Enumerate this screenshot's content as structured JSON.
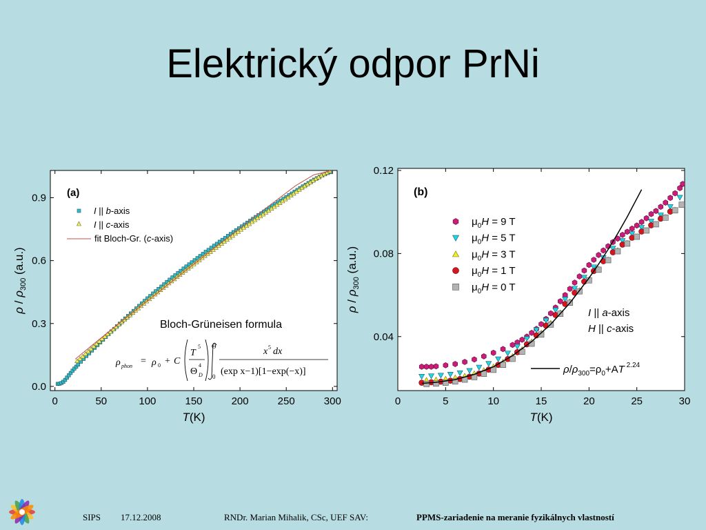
{
  "slide": {
    "title": "Elektrický odpor PrNi"
  },
  "footer": {
    "event": "SIPS",
    "date": "17.12.2008",
    "author": "RNDr. Marian Mihalik, CSc, UEF SAV:",
    "topic": "PPMS-zariadenie na meranie fyzikálnych vlastností"
  },
  "colors": {
    "background": "#b7dde2",
    "fit_a": "#c0504d",
    "b_axis": "#34b9c9",
    "c_axis": "#f2f05e",
    "h9": "#cc1c79",
    "h5": "#25d3e6",
    "h3": "#f2ee21",
    "h1": "#d8141e",
    "h0": "#b3b3b3"
  },
  "chart_data": [
    {
      "type": "scatter",
      "panel_label": "(a)",
      "xlabel_main": "T",
      "xlabel_unit": "(K)",
      "ylabel_rho": "ρ",
      "ylabel_sep": " / ",
      "ylabel_sub": "300",
      "ylabel_unit": " (a.u.)",
      "xlim": [
        -5,
        305
      ],
      "ylim": [
        -0.02,
        1.03
      ],
      "xticks": [
        0,
        50,
        100,
        150,
        200,
        250,
        300
      ],
      "xtick_labels": [
        "0",
        "50",
        "100",
        "150",
        "200",
        "250",
        "300"
      ],
      "yticks": [
        0.0,
        0.3,
        0.6,
        0.9
      ],
      "ytick_labels": [
        "0.0",
        "0.3",
        "0.6",
        "0.9"
      ],
      "annotation": "Bloch-Grüneisen formula",
      "formula": {
        "rho": "ρ",
        "sub_phon": "phon",
        "eq": "=",
        "rho0": "ρ",
        "sub0": "0",
        "plus": "+",
        "C": "C",
        "T": "T",
        "pow5": "5",
        "Theta": "Θ",
        "pow4": "4",
        "subD": "D",
        "int_upper": "Θ",
        "int_lower": "0",
        "numerator": "x",
        "num_pow": "5",
        "num_dx": "dx",
        "denominator": "(exp x−1)[1−exp(−x)]"
      },
      "legend": [
        {
          "key": "b",
          "pre": "I",
          "mid": " || ",
          "axis": "b",
          "post": "-axis"
        },
        {
          "key": "c",
          "pre": "I",
          "mid": " || ",
          "axis": "c",
          "post": "-axis"
        },
        {
          "key": "fit",
          "pre": "fit  Bloch-Gr.  (",
          "axis": "c",
          "post": "-axis)"
        }
      ],
      "series": [
        {
          "key": "b",
          "marker": "square",
          "x": [
            3,
            5,
            7,
            9,
            11,
            13,
            15,
            17,
            19,
            21,
            23,
            25,
            28,
            31,
            34,
            37,
            40,
            43,
            46,
            49,
            52,
            55,
            58,
            61,
            64,
            67,
            70,
            73,
            76,
            79,
            82,
            85,
            88,
            91,
            94,
            97,
            100,
            103,
            106,
            109,
            112,
            115,
            118,
            121,
            124,
            127,
            130,
            133,
            136,
            139,
            142,
            145,
            148,
            151,
            154,
            157,
            160,
            163,
            166,
            169,
            172,
            175,
            178,
            181,
            184,
            187,
            190,
            193,
            196,
            199,
            202,
            205,
            208,
            211,
            214,
            217,
            220,
            223,
            226,
            229,
            232,
            235,
            238,
            241,
            244,
            247,
            250,
            253,
            256,
            259,
            262,
            265,
            268,
            271,
            274,
            277,
            280,
            283,
            286,
            289,
            292,
            295,
            298
          ],
          "y": [
            0.012,
            0.013,
            0.016,
            0.022,
            0.031,
            0.042,
            0.053,
            0.064,
            0.075,
            0.085,
            0.094,
            0.104,
            0.118,
            0.131,
            0.145,
            0.158,
            0.171,
            0.184,
            0.197,
            0.21,
            0.223,
            0.236,
            0.249,
            0.262,
            0.274,
            0.287,
            0.299,
            0.312,
            0.324,
            0.336,
            0.348,
            0.36,
            0.372,
            0.384,
            0.396,
            0.408,
            0.42,
            0.431,
            0.443,
            0.454,
            0.465,
            0.476,
            0.487,
            0.498,
            0.509,
            0.52,
            0.53,
            0.541,
            0.551,
            0.562,
            0.572,
            0.582,
            0.592,
            0.602,
            0.612,
            0.622,
            0.632,
            0.642,
            0.651,
            0.661,
            0.671,
            0.68,
            0.69,
            0.699,
            0.708,
            0.718,
            0.727,
            0.736,
            0.745,
            0.754,
            0.763,
            0.772,
            0.781,
            0.79,
            0.799,
            0.808,
            0.817,
            0.825,
            0.834,
            0.843,
            0.852,
            0.861,
            0.869,
            0.878,
            0.886,
            0.895,
            0.903,
            0.912,
            0.92,
            0.929,
            0.937,
            0.946,
            0.954,
            0.962,
            0.97,
            0.978,
            0.986,
            0.993,
            1.0,
            1.006,
            1.012,
            1.018,
            1.022
          ]
        },
        {
          "key": "c",
          "marker": "triangle",
          "x": [
            24,
            27,
            30,
            33,
            36,
            39,
            42,
            45,
            48,
            51,
            54,
            57,
            60,
            63,
            66,
            69,
            72,
            75,
            78,
            81,
            84,
            87,
            90,
            93,
            96,
            99,
            102,
            105,
            108,
            111,
            114,
            117,
            120,
            123,
            126,
            129,
            132,
            135,
            138,
            141,
            144,
            147,
            150,
            153,
            156,
            159,
            162,
            165,
            168,
            171,
            174,
            177,
            180,
            183,
            186,
            189,
            192,
            195,
            198,
            201,
            204,
            207,
            210,
            213,
            216,
            219,
            222,
            225,
            228,
            231,
            234,
            237,
            240,
            243,
            246,
            249,
            252,
            255,
            258,
            261,
            264,
            267,
            270,
            273,
            276,
            279,
            282,
            285,
            288,
            291,
            294,
            297
          ],
          "y": [
            0.121,
            0.132,
            0.143,
            0.155,
            0.167,
            0.179,
            0.191,
            0.203,
            0.215,
            0.227,
            0.238,
            0.25,
            0.261,
            0.273,
            0.284,
            0.296,
            0.307,
            0.318,
            0.329,
            0.34,
            0.351,
            0.362,
            0.373,
            0.384,
            0.395,
            0.406,
            0.417,
            0.428,
            0.439,
            0.449,
            0.46,
            0.471,
            0.481,
            0.492,
            0.502,
            0.512,
            0.523,
            0.533,
            0.543,
            0.553,
            0.563,
            0.573,
            0.583,
            0.593,
            0.603,
            0.613,
            0.623,
            0.633,
            0.642,
            0.652,
            0.662,
            0.672,
            0.681,
            0.691,
            0.7,
            0.71,
            0.719,
            0.729,
            0.738,
            0.748,
            0.757,
            0.766,
            0.775,
            0.785,
            0.794,
            0.803,
            0.812,
            0.821,
            0.83,
            0.839,
            0.848,
            0.857,
            0.866,
            0.875,
            0.884,
            0.893,
            0.902,
            0.911,
            0.92,
            0.929,
            0.938,
            0.947,
            0.956,
            0.965,
            0.973,
            0.982,
            0.99,
            0.998,
            1.006,
            1.013,
            1.02,
            1.027
          ]
        },
        {
          "key": "fit",
          "marker": "line",
          "x": [
            22,
            40,
            60,
            80,
            100,
            120,
            140,
            160,
            180,
            200,
            220,
            240,
            260,
            280,
            300
          ],
          "y": [
            0.13,
            0.196,
            0.267,
            0.338,
            0.408,
            0.478,
            0.548,
            0.617,
            0.686,
            0.755,
            0.823,
            0.89,
            0.957,
            1.01,
            1.03
          ]
        }
      ]
    },
    {
      "type": "scatter",
      "panel_label": "(b)",
      "xlabel_main": "T",
      "xlabel_unit": "(K)",
      "ylabel_rho": "ρ",
      "ylabel_sep": " / ",
      "ylabel_sub": "300",
      "ylabel_unit": " (a.u.)",
      "xlim": [
        0,
        30
      ],
      "ylim": [
        0.014,
        0.121
      ],
      "xticks": [
        0,
        5,
        10,
        15,
        20,
        25,
        30
      ],
      "xtick_labels": [
        "0",
        "5",
        "10",
        "15",
        "20",
        "25",
        "30"
      ],
      "yticks": [
        0.04,
        0.08,
        0.12
      ],
      "ytick_labels": [
        "0.04",
        "0.08",
        "0.12"
      ],
      "annotation_line1": {
        "pre": "I",
        "mid": "  || ",
        "axis": "a",
        "post": "-axis"
      },
      "annotation_line2": {
        "pre": "H",
        "mid": " || ",
        "axis": "c",
        "post": "-axis"
      },
      "fit_label": {
        "rho": "ρ",
        "slash": "/",
        "rho2": "ρ",
        "sub300": "300",
        "eq": "=ρ",
        "sub0": "0",
        "plusA": "+A",
        "T": "T",
        "pow": " 2.24"
      },
      "legend": [
        {
          "key": "h9",
          "label_mu": "μ",
          "label_sub": "0",
          "label_H": "H",
          "label_val": " = 9 T"
        },
        {
          "key": "h5",
          "label_mu": "μ",
          "label_sub": "0",
          "label_H": "H",
          "label_val": " = 5 T"
        },
        {
          "key": "h3",
          "label_mu": "μ",
          "label_sub": "0",
          "label_H": "H",
          "label_val": " = 3 T"
        },
        {
          "key": "h1",
          "label_mu": "μ",
          "label_sub": "0",
          "label_H": "H",
          "label_val": " = 1 T"
        },
        {
          "key": "h0",
          "label_mu": "μ",
          "label_sub": "0",
          "label_H": "H",
          "label_val": " = 0 T"
        }
      ],
      "series": [
        {
          "key": "h9",
          "marker": "hexagon",
          "x": [
            2.5,
            3,
            3.5,
            4,
            5,
            6,
            7,
            8,
            9,
            10,
            11,
            12,
            12.5,
            13,
            13.5,
            14,
            14.5,
            15,
            15.5,
            16,
            16.5,
            17,
            17.5,
            18,
            18.5,
            19,
            19.5,
            20,
            20.5,
            21,
            21.5,
            22,
            22.5,
            23,
            23.5,
            24,
            24.5,
            25,
            25.5,
            26,
            26.5,
            27,
            27.5,
            28,
            28.5,
            29,
            29.5,
            29.8
          ],
          "y": [
            0.0255,
            0.0255,
            0.0255,
            0.0257,
            0.0262,
            0.0268,
            0.0278,
            0.029,
            0.0305,
            0.0322,
            0.034,
            0.036,
            0.0372,
            0.0385,
            0.04,
            0.0418,
            0.0437,
            0.046,
            0.0485,
            0.0512,
            0.054,
            0.057,
            0.06,
            0.063,
            0.066,
            0.069,
            0.0718,
            0.0745,
            0.077,
            0.0793,
            0.0815,
            0.0835,
            0.0855,
            0.0872,
            0.089,
            0.0905,
            0.092,
            0.0935,
            0.0952,
            0.097,
            0.099,
            0.1005,
            0.1025,
            0.1045,
            0.1068,
            0.109,
            0.1115,
            0.1135
          ]
        },
        {
          "key": "h5",
          "marker": "triangle-down",
          "x": [
            2.5,
            3.5,
            4.5,
            5.5,
            6.5,
            7.5,
            8.5,
            9.5,
            10.5,
            11.5,
            12.5,
            13.5,
            14.5,
            15.5,
            16.5,
            17.5,
            18.5,
            19.5,
            20.5,
            21.5,
            22.5,
            23.5,
            24.5,
            25.5,
            26.5,
            27.5,
            28.5,
            29.5
          ],
          "y": [
            0.0208,
            0.021,
            0.0213,
            0.0218,
            0.0225,
            0.0236,
            0.0252,
            0.027,
            0.0292,
            0.032,
            0.0352,
            0.039,
            0.0432,
            0.0478,
            0.0528,
            0.058,
            0.0632,
            0.0685,
            0.0735,
            0.078,
            0.0825,
            0.0862,
            0.0895,
            0.0925,
            0.0955,
            0.0985,
            0.1025,
            0.107
          ]
        },
        {
          "key": "h3",
          "marker": "triangle",
          "x": [
            3,
            4,
            5,
            6,
            7,
            8,
            9,
            10,
            11,
            12,
            13,
            14,
            15,
            16,
            17,
            18,
            19,
            20,
            21,
            22,
            23,
            24,
            25,
            26,
            27,
            28,
            29
          ],
          "y": [
            0.019,
            0.0192,
            0.0196,
            0.0202,
            0.021,
            0.0222,
            0.0237,
            0.0255,
            0.0278,
            0.0305,
            0.0338,
            0.0375,
            0.0418,
            0.0465,
            0.0515,
            0.0568,
            0.0622,
            0.0675,
            0.0725,
            0.077,
            0.0815,
            0.085,
            0.088,
            0.091,
            0.094,
            0.0975,
            0.101
          ]
        },
        {
          "key": "h1",
          "marker": "circle",
          "x": [
            2.5,
            3.5,
            4.5,
            5.5,
            6.5,
            7.5,
            8.5,
            9.5,
            10.5,
            11.5,
            12.5,
            13.5,
            14.5,
            15.5,
            16.5,
            17.5,
            18.5,
            19.5,
            20.5,
            21.5,
            22.5,
            23.5,
            24.5,
            25.5,
            26.5,
            27.5,
            28.5
          ],
          "y": [
            0.0178,
            0.018,
            0.0183,
            0.0188,
            0.0196,
            0.0207,
            0.0222,
            0.0241,
            0.0264,
            0.0292,
            0.0325,
            0.0363,
            0.0406,
            0.0453,
            0.0504,
            0.0557,
            0.0611,
            0.0665,
            0.0716,
            0.0763,
            0.0806,
            0.0843,
            0.0876,
            0.0906,
            0.0936,
            0.0968,
            0.1002
          ]
        },
        {
          "key": "h0",
          "marker": "square",
          "x": [
            3,
            4,
            5,
            6,
            7,
            8,
            9,
            10,
            11,
            12,
            13,
            14,
            15,
            16,
            17,
            18,
            19,
            20,
            21,
            22,
            23,
            24,
            25,
            26,
            27,
            28,
            29,
            29.7
          ],
          "y": [
            0.0172,
            0.0174,
            0.0178,
            0.0184,
            0.0193,
            0.0205,
            0.0221,
            0.024,
            0.0264,
            0.0293,
            0.0327,
            0.0366,
            0.041,
            0.0458,
            0.051,
            0.0563,
            0.0618,
            0.0671,
            0.0722,
            0.0768,
            0.0811,
            0.0848,
            0.0881,
            0.0911,
            0.0941,
            0.0973,
            0.1008,
            0.1035
          ]
        },
        {
          "key": "fit",
          "marker": "line",
          "x": [
            2.5,
            4,
            6,
            8,
            10,
            12,
            14,
            16,
            18,
            20,
            21,
            22,
            23,
            24,
            25.5
          ],
          "y": [
            0.0175,
            0.018,
            0.0193,
            0.0218,
            0.0255,
            0.0308,
            0.0376,
            0.046,
            0.0562,
            0.0682,
            0.0749,
            0.082,
            0.0896,
            0.0977,
            0.1108
          ]
        }
      ]
    }
  ]
}
